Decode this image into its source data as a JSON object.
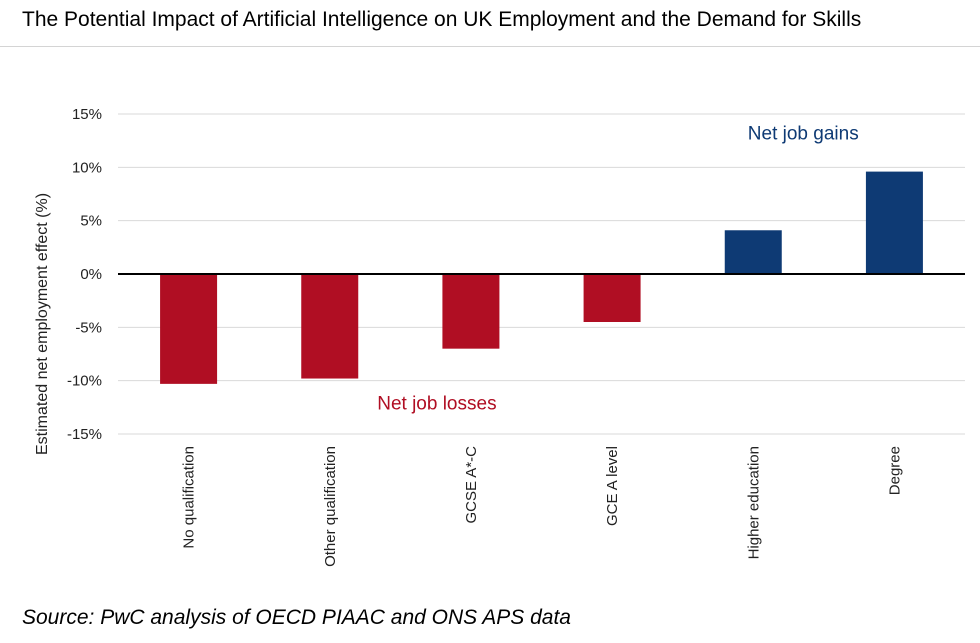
{
  "title": "The Potential Impact of Artificial Intelligence on UK Employment and the Demand for Skills",
  "source": "Source: PwC analysis of OECD PIAAC and ONS APS data",
  "colors": {
    "losses": "#b00e23",
    "gains": "#0e3a74",
    "grid": "#d9d9d9",
    "zero_line": "#000000"
  },
  "chart_data": {
    "type": "bar",
    "title": "",
    "xlabel": "",
    "ylabel": "Estimated net employment effect (%)",
    "ylim": [
      -15,
      15
    ],
    "yticks": [
      15,
      10,
      5,
      0,
      -5,
      -10,
      -15
    ],
    "ytick_labels": [
      "15%",
      "10%",
      "5%",
      "0%",
      "-5%",
      "-10%",
      "-15%"
    ],
    "grid": true,
    "categories": [
      "No qualification",
      "Other qualification",
      "GCSE A*-C",
      "GCE A level",
      "Higher education",
      "Degree"
    ],
    "values": [
      -10.3,
      -9.8,
      -7.0,
      -4.5,
      4.1,
      9.6
    ],
    "annotations": [
      {
        "text": "Net job gains",
        "color": "#0e3a74"
      },
      {
        "text": "Net job losses",
        "color": "#b00e23"
      }
    ]
  }
}
